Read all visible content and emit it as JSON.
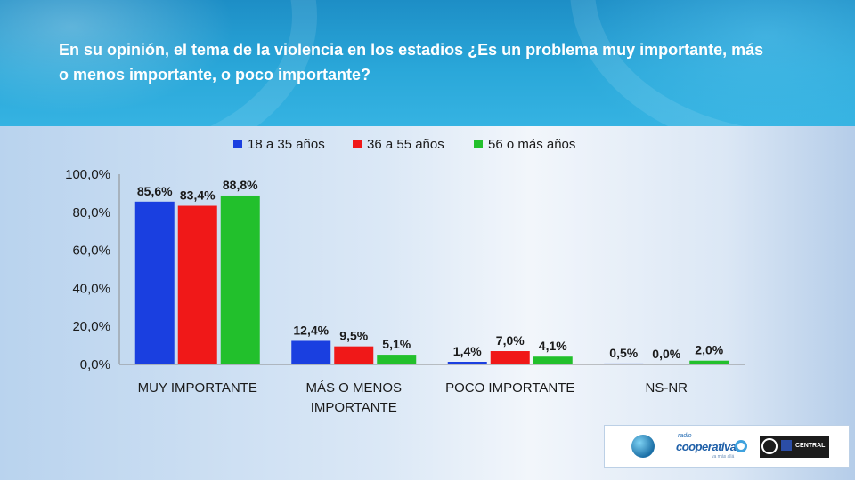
{
  "title": "En su opinión, el tema de la violencia en los estadios ¿Es un problema muy importante, más o menos importante, o poco importante?",
  "logos": {
    "cooperativa_small": "radio",
    "cooperativa_big": "cooperativa",
    "cooperativa_tagline": "va más allá",
    "ucentral": "CENTRAL"
  },
  "chart_data": {
    "type": "bar",
    "categories": [
      [
        "MUY IMPORTANTE"
      ],
      [
        "MÁS O MENOS",
        "IMPORTANTE"
      ],
      [
        "POCO IMPORTANTE"
      ],
      [
        "NS-NR"
      ]
    ],
    "series": [
      {
        "name": "18 a 35 años",
        "color": "#1a3fe0",
        "values": [
          85.6,
          12.4,
          1.4,
          0.5
        ],
        "labels": [
          "85,6%",
          "12,4%",
          "1,4%",
          "0,5%"
        ]
      },
      {
        "name": "36 a 55 años",
        "color": "#f01818",
        "values": [
          83.4,
          9.5,
          7.0,
          0.0
        ],
        "labels": [
          "83,4%",
          "9,5%",
          "7,0%",
          "0,0%"
        ]
      },
      {
        "name": "56 o más años",
        "color": "#22c02c",
        "values": [
          88.8,
          5.1,
          4.1,
          2.0
        ],
        "labels": [
          "88,8%",
          "5,1%",
          "4,1%",
          "2,0%"
        ]
      }
    ],
    "yticks": [
      "0,0%",
      "20,0%",
      "40,0%",
      "60,0%",
      "80,0%",
      "100,0%"
    ],
    "ylim": [
      0,
      100
    ],
    "grid": false,
    "legend": "top"
  }
}
